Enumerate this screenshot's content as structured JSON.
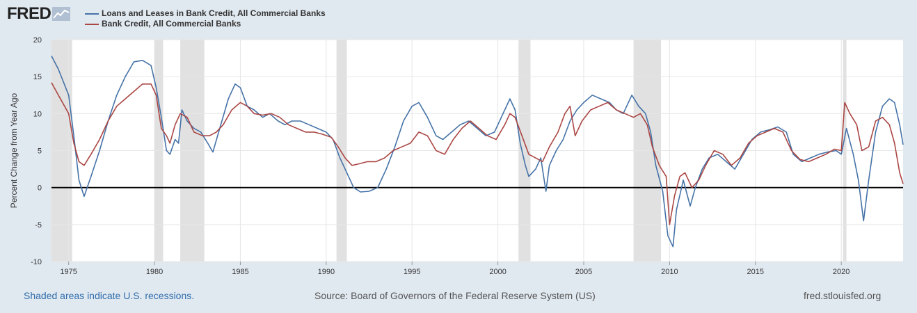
{
  "brand": {
    "name": "FRED"
  },
  "footer": {
    "recession_note": "Shaded areas indicate U.S. recessions.",
    "source": "Source: Board of Governors of the Federal Reserve System (US)",
    "site": "fred.stlouisfed.org"
  },
  "colors": {
    "background": "#e1e9f0",
    "plot_bg": "#ffffff",
    "recession": "#e1e1e1",
    "zero_line": "#000000"
  },
  "chart_data": {
    "type": "line",
    "ylabel": "Percent Change from Year Ago",
    "xlabel": "",
    "ylim": [
      -10,
      20
    ],
    "xlim": [
      1974.0,
      2023.6
    ],
    "yticks": [
      20,
      15,
      10,
      5,
      0,
      -5,
      -10
    ],
    "xticks": [
      1975,
      1980,
      1985,
      1990,
      1995,
      2000,
      2005,
      2010,
      2015,
      2020
    ],
    "grid": true,
    "legend_position": "top-left",
    "recessions": [
      [
        1974.0,
        1975.2
      ],
      [
        1980.0,
        1980.5
      ],
      [
        1981.5,
        1982.9
      ],
      [
        1990.6,
        1991.2
      ],
      [
        2001.2,
        2001.9
      ],
      [
        2007.9,
        2009.5
      ],
      [
        2020.1,
        2020.3
      ]
    ],
    "series": [
      {
        "name": "Loans and Leases in Bank Credit, All Commercial Banks",
        "color": "#4572a7",
        "points": [
          [
            1974.0,
            17.8
          ],
          [
            1974.4,
            16.0
          ],
          [
            1975.0,
            12.5
          ],
          [
            1975.3,
            7.0
          ],
          [
            1975.6,
            1.0
          ],
          [
            1975.9,
            -1.2
          ],
          [
            1976.3,
            1.5
          ],
          [
            1976.8,
            5.0
          ],
          [
            1977.3,
            9.0
          ],
          [
            1977.8,
            12.5
          ],
          [
            1978.3,
            15.0
          ],
          [
            1978.8,
            17.0
          ],
          [
            1979.3,
            17.2
          ],
          [
            1979.8,
            16.5
          ],
          [
            1980.1,
            13.5
          ],
          [
            1980.4,
            9.5
          ],
          [
            1980.7,
            5.0
          ],
          [
            1980.9,
            4.5
          ],
          [
            1981.2,
            6.5
          ],
          [
            1981.4,
            6.0
          ],
          [
            1981.6,
            10.5
          ],
          [
            1981.9,
            9.0
          ],
          [
            1982.3,
            8.0
          ],
          [
            1982.7,
            7.5
          ],
          [
            1983.1,
            6.0
          ],
          [
            1983.4,
            4.8
          ],
          [
            1983.8,
            8.0
          ],
          [
            1984.3,
            12.0
          ],
          [
            1984.7,
            14.0
          ],
          [
            1985.0,
            13.5
          ],
          [
            1985.4,
            11.0
          ],
          [
            1985.8,
            10.5
          ],
          [
            1986.3,
            9.5
          ],
          [
            1986.7,
            10.0
          ],
          [
            1987.2,
            9.0
          ],
          [
            1987.6,
            8.5
          ],
          [
            1988.0,
            9.0
          ],
          [
            1988.5,
            9.0
          ],
          [
            1989.0,
            8.5
          ],
          [
            1989.5,
            8.0
          ],
          [
            1990.0,
            7.5
          ],
          [
            1990.4,
            6.5
          ],
          [
            1990.8,
            4.0
          ],
          [
            1991.2,
            2.0
          ],
          [
            1991.6,
            0.0
          ],
          [
            1992.0,
            -0.6
          ],
          [
            1992.5,
            -0.5
          ],
          [
            1993.0,
            0.0
          ],
          [
            1993.5,
            2.5
          ],
          [
            1994.0,
            5.5
          ],
          [
            1994.5,
            9.0
          ],
          [
            1995.0,
            11.0
          ],
          [
            1995.4,
            11.5
          ],
          [
            1995.9,
            9.5
          ],
          [
            1996.4,
            7.0
          ],
          [
            1996.8,
            6.5
          ],
          [
            1997.3,
            7.5
          ],
          [
            1997.8,
            8.5
          ],
          [
            1998.3,
            9.0
          ],
          [
            1998.8,
            8.0
          ],
          [
            1999.3,
            7.0
          ],
          [
            1999.8,
            7.5
          ],
          [
            2000.3,
            10.0
          ],
          [
            2000.7,
            12.0
          ],
          [
            2001.0,
            10.5
          ],
          [
            2001.3,
            6.0
          ],
          [
            2001.6,
            3.0
          ],
          [
            2001.8,
            1.5
          ],
          [
            2002.2,
            2.5
          ],
          [
            2002.5,
            4.0
          ],
          [
            2002.7,
            1.0
          ],
          [
            2002.8,
            -0.5
          ],
          [
            2003.0,
            3.0
          ],
          [
            2003.4,
            5.0
          ],
          [
            2003.8,
            6.5
          ],
          [
            2004.2,
            9.0
          ],
          [
            2004.6,
            10.5
          ],
          [
            2005.0,
            11.5
          ],
          [
            2005.5,
            12.5
          ],
          [
            2006.0,
            12.0
          ],
          [
            2006.5,
            11.5
          ],
          [
            2006.9,
            10.5
          ],
          [
            2007.3,
            10.0
          ],
          [
            2007.8,
            12.5
          ],
          [
            2008.2,
            11.0
          ],
          [
            2008.6,
            10.0
          ],
          [
            2008.9,
            7.5
          ],
          [
            2009.2,
            3.0
          ],
          [
            2009.6,
            -0.5
          ],
          [
            2009.9,
            -6.5
          ],
          [
            2010.2,
            -8.0
          ],
          [
            2010.4,
            -3.0
          ],
          [
            2010.8,
            1.0
          ],
          [
            2011.2,
            -2.5
          ],
          [
            2011.5,
            0.0
          ],
          [
            2011.9,
            2.5
          ],
          [
            2012.3,
            4.0
          ],
          [
            2012.8,
            4.5
          ],
          [
            2013.3,
            3.5
          ],
          [
            2013.8,
            2.5
          ],
          [
            2014.3,
            4.5
          ],
          [
            2014.8,
            6.5
          ],
          [
            2015.3,
            7.5
          ],
          [
            2015.8,
            7.8
          ],
          [
            2016.3,
            8.2
          ],
          [
            2016.8,
            7.5
          ],
          [
            2017.2,
            4.5
          ],
          [
            2017.7,
            3.5
          ],
          [
            2018.2,
            4.0
          ],
          [
            2018.7,
            4.5
          ],
          [
            2019.2,
            4.8
          ],
          [
            2019.7,
            5.0
          ],
          [
            2020.0,
            4.5
          ],
          [
            2020.3,
            8.0
          ],
          [
            2020.7,
            4.5
          ],
          [
            2021.0,
            1.0
          ],
          [
            2021.3,
            -4.5
          ],
          [
            2021.6,
            1.0
          ],
          [
            2022.0,
            7.5
          ],
          [
            2022.4,
            11.0
          ],
          [
            2022.8,
            12.0
          ],
          [
            2023.1,
            11.5
          ],
          [
            2023.4,
            8.5
          ],
          [
            2023.6,
            5.8
          ]
        ]
      },
      {
        "name": "Bank Credit, All Commercial Banks",
        "color": "#aa4643",
        "points": [
          [
            1974.0,
            14.2
          ],
          [
            1974.4,
            12.5
          ],
          [
            1975.0,
            10.0
          ],
          [
            1975.3,
            6.0
          ],
          [
            1975.6,
            3.5
          ],
          [
            1975.9,
            3.0
          ],
          [
            1976.3,
            4.5
          ],
          [
            1976.8,
            6.5
          ],
          [
            1977.3,
            9.0
          ],
          [
            1977.8,
            11.0
          ],
          [
            1978.3,
            12.0
          ],
          [
            1978.8,
            13.0
          ],
          [
            1979.3,
            14.0
          ],
          [
            1979.8,
            14.0
          ],
          [
            1980.1,
            12.5
          ],
          [
            1980.4,
            8.0
          ],
          [
            1980.7,
            7.0
          ],
          [
            1980.9,
            6.0
          ],
          [
            1981.2,
            8.5
          ],
          [
            1981.5,
            10.0
          ],
          [
            1981.9,
            9.5
          ],
          [
            1982.3,
            7.5
          ],
          [
            1982.8,
            7.0
          ],
          [
            1983.2,
            7.0
          ],
          [
            1983.6,
            7.5
          ],
          [
            1984.0,
            8.5
          ],
          [
            1984.5,
            10.5
          ],
          [
            1985.0,
            11.5
          ],
          [
            1985.4,
            11.0
          ],
          [
            1985.8,
            10.0
          ],
          [
            1986.3,
            9.8
          ],
          [
            1986.8,
            10.0
          ],
          [
            1987.3,
            9.5
          ],
          [
            1987.8,
            8.5
          ],
          [
            1988.3,
            8.0
          ],
          [
            1988.8,
            7.5
          ],
          [
            1989.3,
            7.5
          ],
          [
            1989.8,
            7.2
          ],
          [
            1990.3,
            6.8
          ],
          [
            1990.7,
            5.5
          ],
          [
            1991.1,
            4.0
          ],
          [
            1991.5,
            3.0
          ],
          [
            1991.9,
            3.2
          ],
          [
            1992.4,
            3.5
          ],
          [
            1992.9,
            3.5
          ],
          [
            1993.4,
            4.0
          ],
          [
            1993.9,
            5.0
          ],
          [
            1994.4,
            5.5
          ],
          [
            1994.9,
            6.0
          ],
          [
            1995.4,
            7.5
          ],
          [
            1995.9,
            7.0
          ],
          [
            1996.4,
            5.0
          ],
          [
            1996.9,
            4.5
          ],
          [
            1997.4,
            6.5
          ],
          [
            1997.9,
            8.0
          ],
          [
            1998.4,
            9.0
          ],
          [
            1998.9,
            8.0
          ],
          [
            1999.4,
            7.0
          ],
          [
            1999.9,
            6.5
          ],
          [
            2000.4,
            8.5
          ],
          [
            2000.7,
            10.0
          ],
          [
            2001.0,
            9.5
          ],
          [
            2001.4,
            7.0
          ],
          [
            2001.8,
            4.5
          ],
          [
            2002.2,
            4.0
          ],
          [
            2002.6,
            3.5
          ],
          [
            2003.0,
            5.5
          ],
          [
            2003.5,
            7.5
          ],
          [
            2003.9,
            10.0
          ],
          [
            2004.2,
            11.0
          ],
          [
            2004.5,
            7.0
          ],
          [
            2004.9,
            9.0
          ],
          [
            2005.4,
            10.5
          ],
          [
            2005.9,
            11.0
          ],
          [
            2006.4,
            11.5
          ],
          [
            2006.9,
            10.5
          ],
          [
            2007.4,
            10.0
          ],
          [
            2007.9,
            9.5
          ],
          [
            2008.3,
            10.0
          ],
          [
            2008.7,
            8.5
          ],
          [
            2009.0,
            5.5
          ],
          [
            2009.4,
            3.0
          ],
          [
            2009.8,
            1.5
          ],
          [
            2010.0,
            -5.0
          ],
          [
            2010.3,
            -1.0
          ],
          [
            2010.6,
            1.5
          ],
          [
            2010.9,
            2.0
          ],
          [
            2011.3,
            0.0
          ],
          [
            2011.7,
            1.0
          ],
          [
            2012.1,
            3.0
          ],
          [
            2012.6,
            5.0
          ],
          [
            2013.1,
            4.5
          ],
          [
            2013.6,
            3.0
          ],
          [
            2014.1,
            4.0
          ],
          [
            2014.6,
            6.0
          ],
          [
            2015.1,
            7.0
          ],
          [
            2015.6,
            7.5
          ],
          [
            2016.1,
            8.0
          ],
          [
            2016.6,
            7.5
          ],
          [
            2017.1,
            5.0
          ],
          [
            2017.6,
            3.8
          ],
          [
            2018.1,
            3.5
          ],
          [
            2018.6,
            4.0
          ],
          [
            2019.1,
            4.5
          ],
          [
            2019.6,
            5.2
          ],
          [
            2020.0,
            5.0
          ],
          [
            2020.2,
            11.5
          ],
          [
            2020.5,
            10.0
          ],
          [
            2020.9,
            8.5
          ],
          [
            2021.2,
            5.0
          ],
          [
            2021.6,
            5.5
          ],
          [
            2022.0,
            9.0
          ],
          [
            2022.4,
            9.5
          ],
          [
            2022.8,
            8.5
          ],
          [
            2023.1,
            6.0
          ],
          [
            2023.4,
            2.0
          ],
          [
            2023.6,
            0.5
          ]
        ]
      }
    ]
  }
}
